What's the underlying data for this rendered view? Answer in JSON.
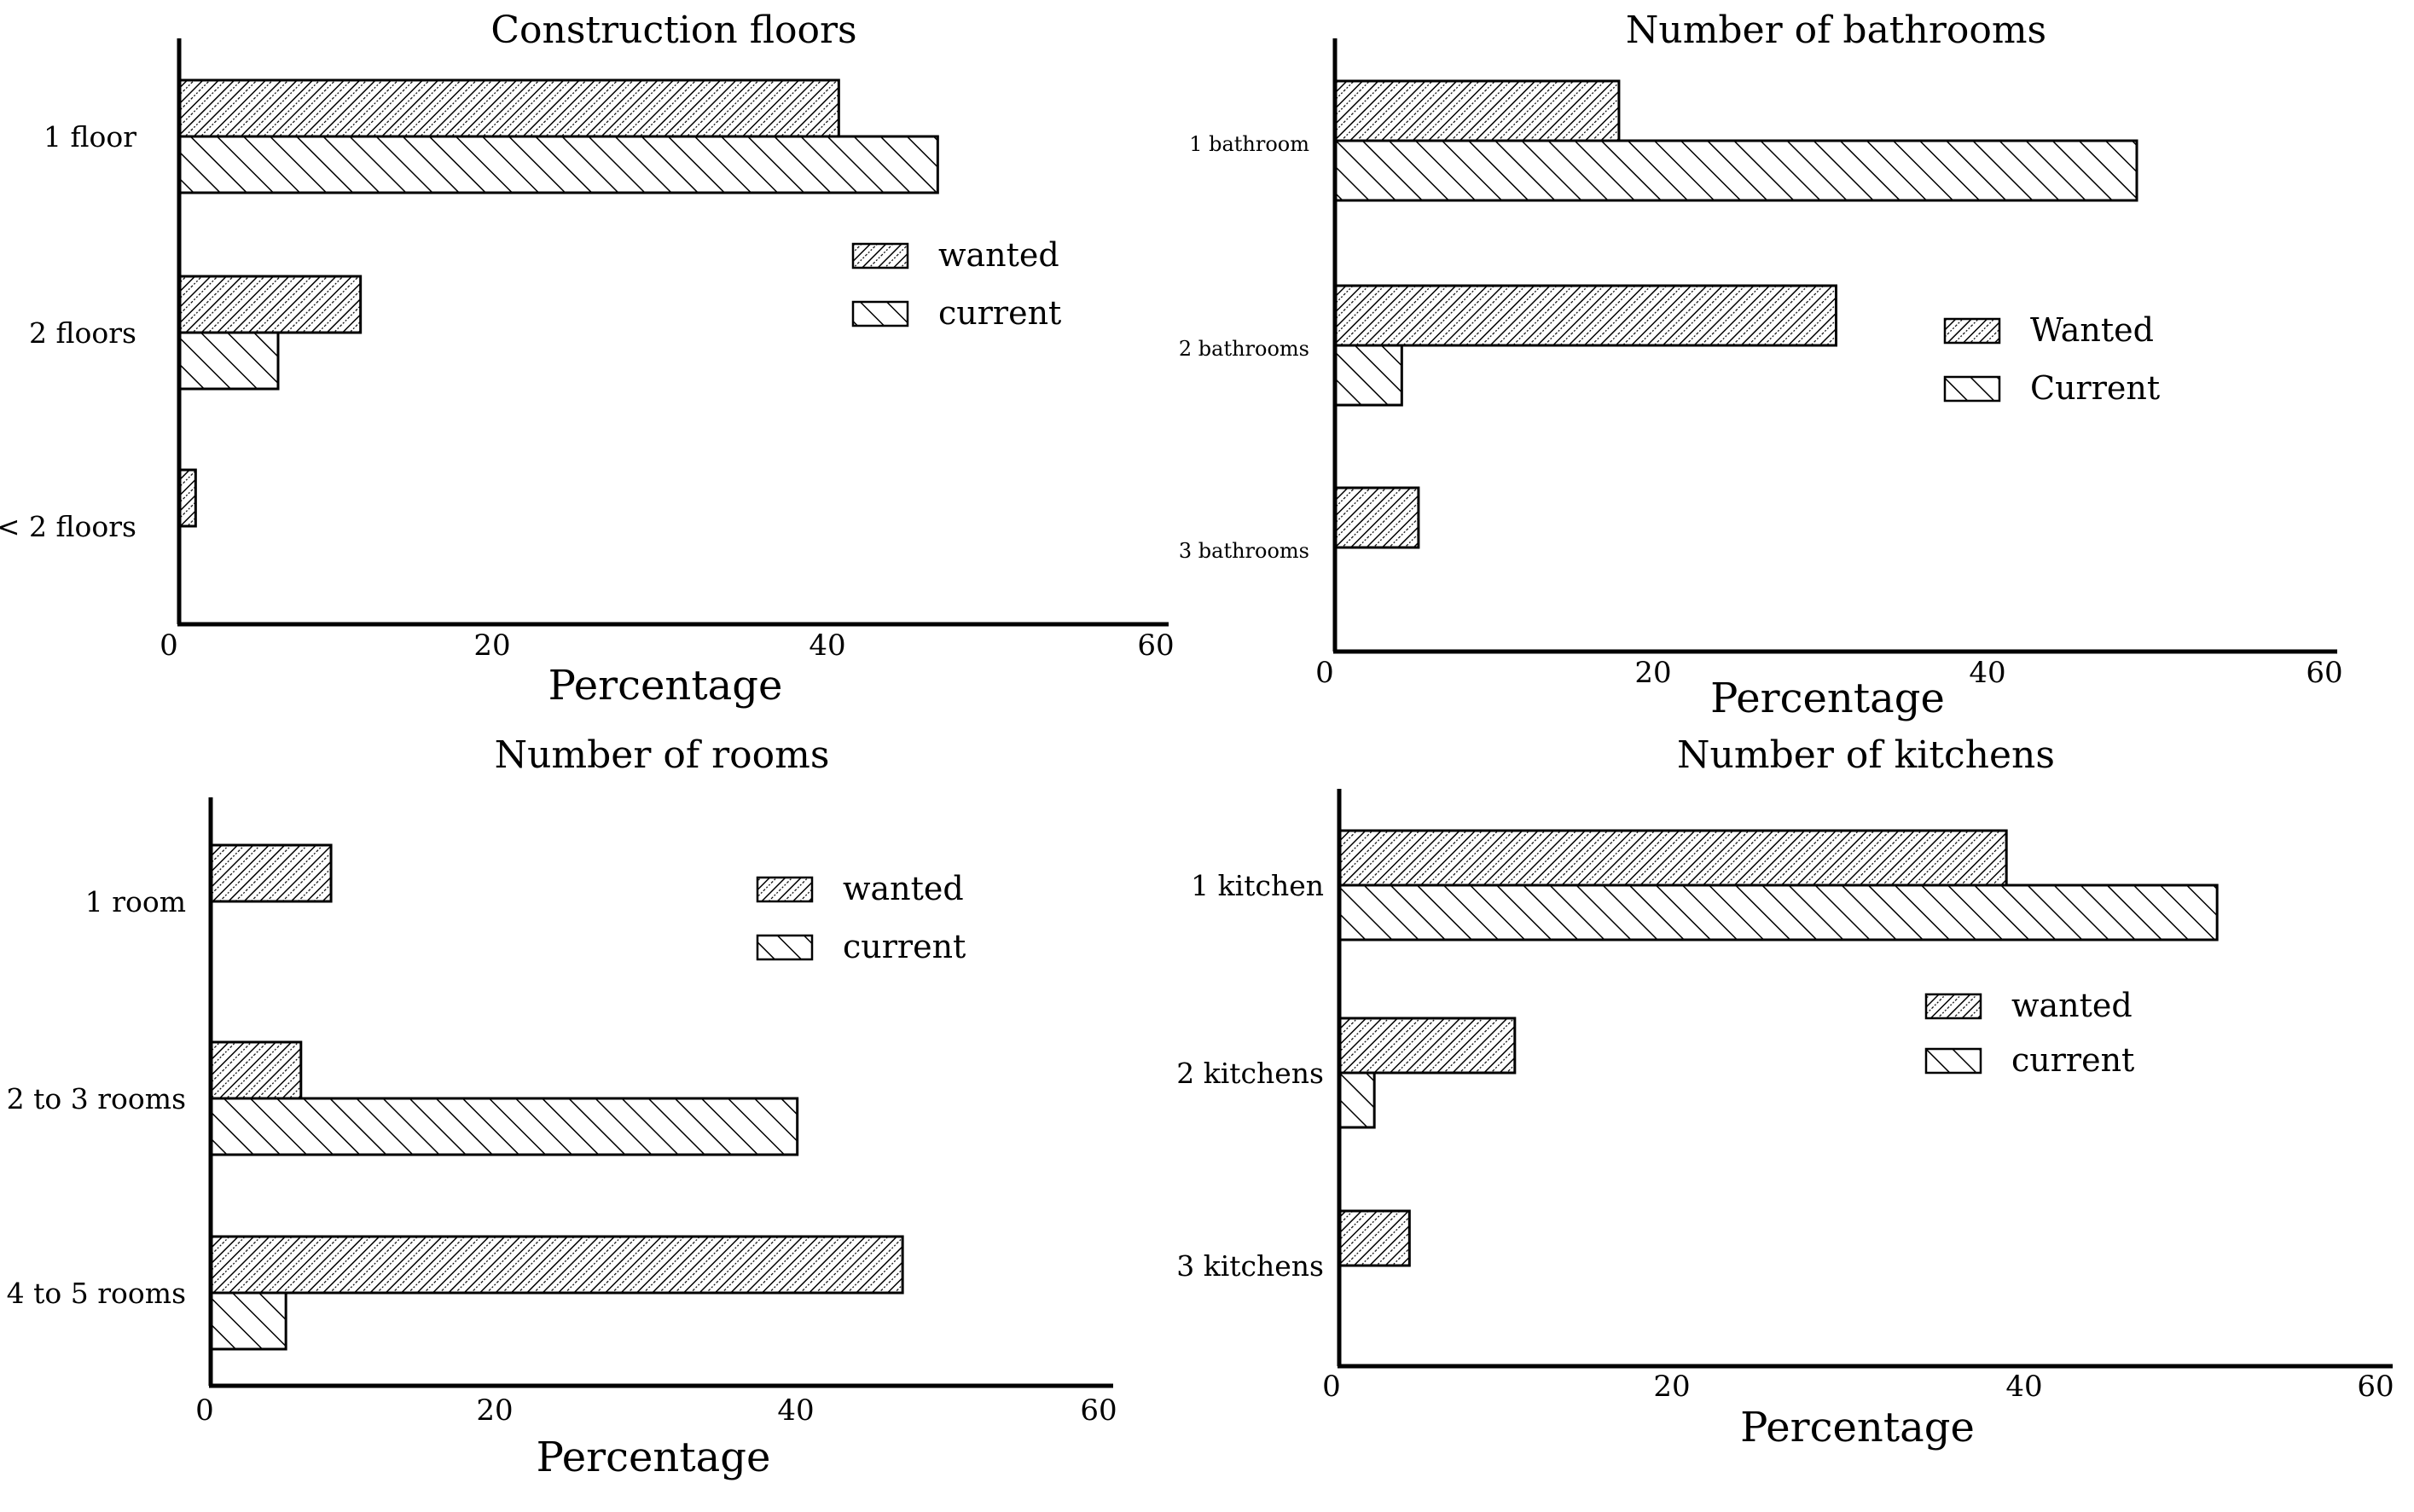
{
  "chart_data": [
    {
      "type": "bar",
      "orientation": "horizontal",
      "title": "Construction floors",
      "xlabel": "Percentage",
      "ylabel": "",
      "xlim": [
        0,
        60
      ],
      "xticks": [
        "0",
        "20",
        "40",
        "60"
      ],
      "categories": [
        "1 floor",
        "2 floors",
        "< 2 floors"
      ],
      "series": [
        {
          "name": "wanted",
          "values": [
            40,
            11,
            1
          ]
        },
        {
          "name": "current",
          "values": [
            46,
            6,
            0
          ]
        }
      ],
      "legend_position": "right"
    },
    {
      "type": "bar",
      "orientation": "horizontal",
      "title": "Number of bathrooms",
      "xlabel": "Percentage",
      "ylabel": "",
      "xlim": [
        0,
        60
      ],
      "xticks": [
        "0",
        "20",
        "40",
        "60"
      ],
      "categories": [
        "1 bathroom",
        "2 bathrooms",
        "3 bathrooms"
      ],
      "series": [
        {
          "name": "Wanted",
          "values": [
            17,
            30,
            5
          ]
        },
        {
          "name": "Current",
          "values": [
            48,
            4,
            0
          ]
        }
      ],
      "legend_position": "right"
    },
    {
      "type": "bar",
      "orientation": "horizontal",
      "title": "Number of rooms",
      "xlabel": "Percentage",
      "ylabel": "",
      "xlim": [
        0,
        60
      ],
      "xticks": [
        "0",
        "20",
        "40",
        "60"
      ],
      "categories": [
        "1 room",
        "2 to 3 rooms",
        "4 to 5 rooms"
      ],
      "series": [
        {
          "name": "wanted",
          "values": [
            8,
            6,
            46
          ]
        },
        {
          "name": "current",
          "values": [
            0,
            39,
            5
          ]
        }
      ],
      "legend_position": "top-right"
    },
    {
      "type": "bar",
      "orientation": "horizontal",
      "title": "Number of kitchens",
      "xlabel": "Percentage",
      "ylabel": "",
      "xlim": [
        0,
        60
      ],
      "xticks": [
        "0",
        "20",
        "40",
        "60"
      ],
      "categories": [
        "1 kitchen",
        "2 kitchens",
        "3 kitchens"
      ],
      "series": [
        {
          "name": "wanted",
          "values": [
            38,
            10,
            4
          ]
        },
        {
          "name": "current",
          "values": [
            50,
            2,
            0
          ]
        }
      ],
      "legend_position": "right"
    }
  ]
}
